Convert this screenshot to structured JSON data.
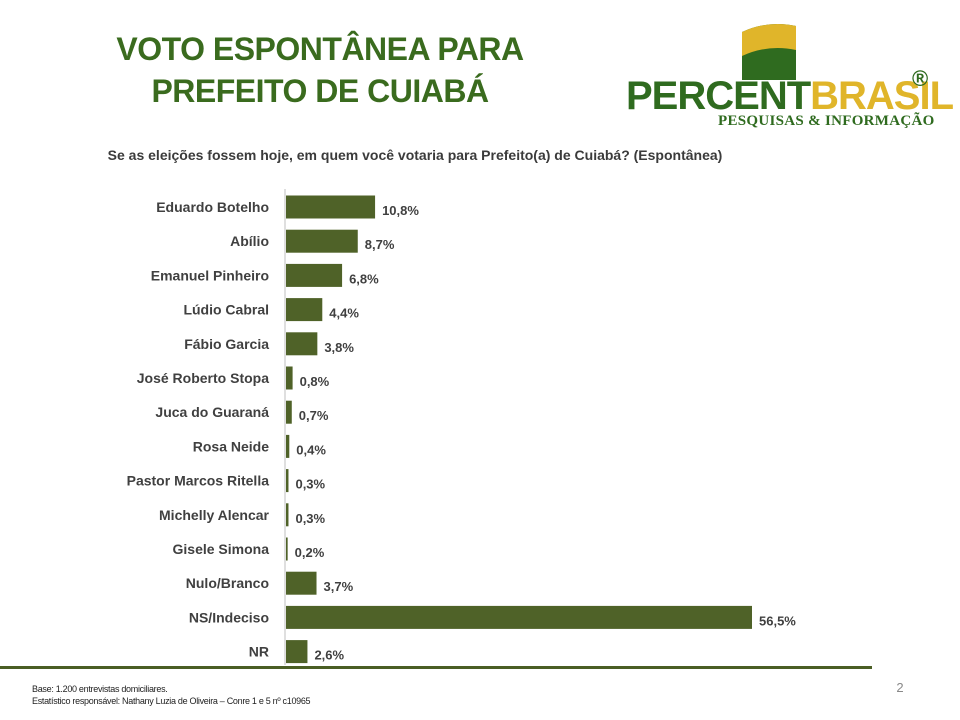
{
  "title": {
    "line1": "VOTO ESPONTÂNEA PARA",
    "line2": "PREFEITO DE CUIABÁ"
  },
  "logo": {
    "word_part1": "PERCENT",
    "word_part2": "BRASIL",
    "registered": "®",
    "subtitle": "PESQUISAS & INFORMAÇÃO",
    "colors": {
      "green": "#2f6b1f",
      "yellow": "#e0b52a"
    }
  },
  "question": "Se as eleições fossem hoje, em quem você votaria para Prefeito(a) de Cuiabá? (Espontânea)",
  "chart_data": {
    "type": "bar",
    "orientation": "horizontal",
    "categories": [
      "Eduardo Botelho",
      "Abílio",
      "Emanuel Pinheiro",
      "Lúdio Cabral",
      "Fábio Garcia",
      "José Roberto Stopa",
      "Juca do Guaraná",
      "Rosa Neide",
      "Pastor Marcos Ritella",
      "Michelly Alencar",
      "Gisele Simona",
      "Nulo/Branco",
      "NS/Indeciso",
      "NR"
    ],
    "values": [
      10.8,
      8.7,
      6.8,
      4.4,
      3.8,
      0.8,
      0.7,
      0.4,
      0.3,
      0.3,
      0.2,
      3.7,
      56.5,
      2.6
    ],
    "labels": [
      "10,8%",
      "8,7%",
      "6,8%",
      "4,4%",
      "3,8%",
      "0,8%",
      "0,7%",
      "0,4%",
      "0,3%",
      "0,3%",
      "0,2%",
      "3,7%",
      "56,5%",
      "2,6%"
    ],
    "bar_color": "#4f6228",
    "xlim": [
      0,
      56.5
    ],
    "grid": false,
    "legend": "none"
  },
  "footer": {
    "base": "Base: 1.200 entrevistas domiciliares.",
    "responsible": "Estatístico responsável: Nathany Luzia de Oliveira – Conre 1 e 5 nº c10965"
  },
  "page_number": "2",
  "colors": {
    "title": "#3a6b1e",
    "rule": "#4a5e24"
  }
}
